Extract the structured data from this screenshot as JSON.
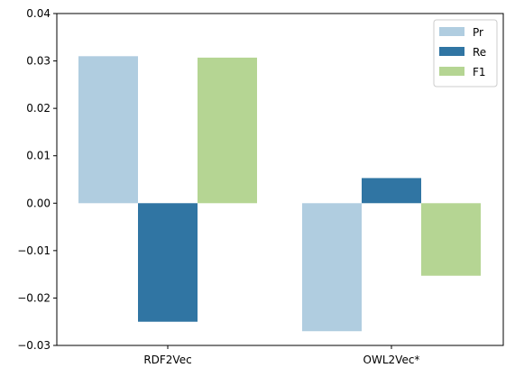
{
  "chart_data": {
    "type": "bar",
    "title": "",
    "xlabel": "",
    "ylabel": "",
    "categories": [
      "RDF2Vec",
      "OWL2Vec*"
    ],
    "series": [
      {
        "name": "Pr",
        "color": "#b0cde0",
        "values": [
          0.031,
          -0.027
        ]
      },
      {
        "name": "Re",
        "color": "#3075a3",
        "values": [
          -0.025,
          0.0053
        ]
      },
      {
        "name": "F1",
        "color": "#b5d593",
        "values": [
          0.0307,
          -0.0153
        ]
      }
    ],
    "ylim": [
      -0.03,
      0.04
    ],
    "yticks": [
      "0.04",
      "0.03",
      "0.02",
      "0.01",
      "0.00",
      "−0.01",
      "−0.02",
      "−0.03"
    ],
    "ytick_values": [
      0.04,
      0.03,
      0.02,
      0.01,
      0.0,
      -0.01,
      -0.02,
      -0.03
    ],
    "grid": false,
    "legend_position": "top-right"
  }
}
